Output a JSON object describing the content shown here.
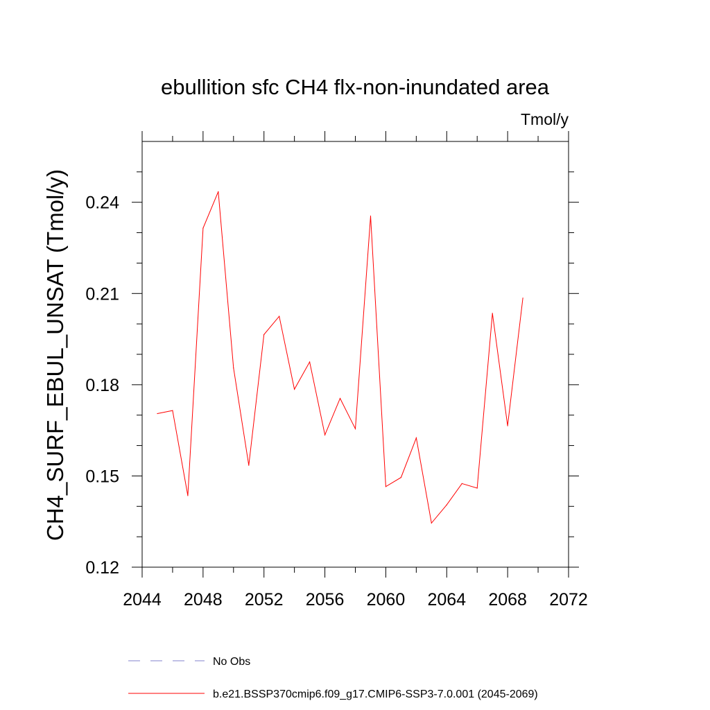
{
  "chart_data": {
    "type": "line",
    "title": "ebullition sfc CH4 flx-non-inundated area",
    "units_label": "Tmol/y",
    "ylabel": "CH4_SURF_EBUL_UNSAT  (Tmol/y)",
    "xlabel": "",
    "xlim": [
      2044,
      2072
    ],
    "ylim": [
      0.12,
      0.26
    ],
    "x_ticks": [
      "2044",
      "2048",
      "2052",
      "2056",
      "2060",
      "2064",
      "2068",
      "2072"
    ],
    "y_ticks": [
      "0.12",
      "0.15",
      "0.18",
      "0.21",
      "0.24"
    ],
    "grid": false,
    "legend_position": "bottom",
    "series": [
      {
        "name": "b.e21.BSSP370cmip6.f09_g17.CMIP6-SSP3-7.0.001 (2045-2069)",
        "color": "#ff0000",
        "style": "solid",
        "x": [
          2045,
          2046,
          2047,
          2048,
          2049,
          2050,
          2051,
          2052,
          2053,
          2054,
          2055,
          2056,
          2057,
          2058,
          2059,
          2060,
          2061,
          2062,
          2063,
          2064,
          2065,
          2066,
          2067,
          2068,
          2069
        ],
        "values": [
          0.1705,
          0.1715,
          0.1435,
          0.2315,
          0.2435,
          0.1855,
          0.1535,
          0.1965,
          0.2025,
          0.1785,
          0.1875,
          0.1635,
          0.1755,
          0.1655,
          0.2355,
          0.1465,
          0.1495,
          0.1625,
          0.1345,
          0.1405,
          0.1475,
          0.146,
          0.2035,
          0.1665,
          0.2085
        ]
      }
    ],
    "legend": [
      {
        "label": "No Obs",
        "color": "#8080cc",
        "style": "dashed"
      },
      {
        "label": "b.e21.BSSP370cmip6.f09_g17.CMIP6-SSP3-7.0.001 (2045-2069)",
        "color": "#ff0000",
        "style": "solid"
      }
    ]
  }
}
